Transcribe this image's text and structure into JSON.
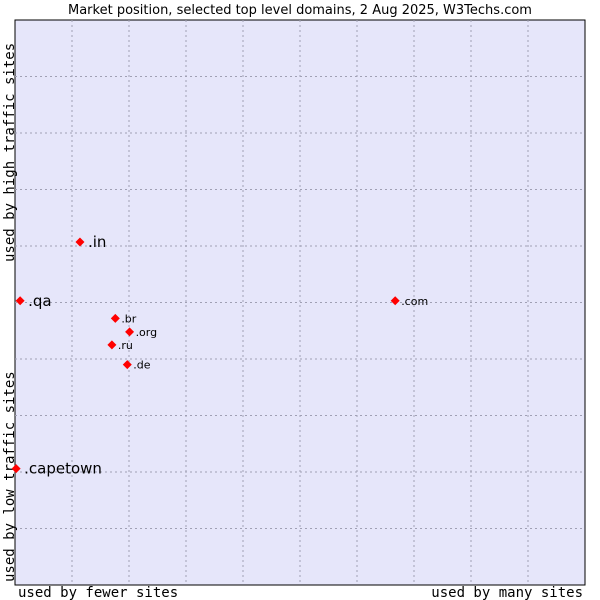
{
  "chart_data": {
    "type": "scatter",
    "title": "Market position, selected top level domains, 2 Aug 2025, W3Techs.com",
    "xlabel_left": "used by fewer sites",
    "xlabel_right": "used by many sites",
    "ylabel_bottom": "used by low traffic sites",
    "ylabel_top": "used by high traffic sites",
    "xlim": [
      0,
      100
    ],
    "ylim": [
      0,
      100
    ],
    "grid": true,
    "point_color": "#ff0000",
    "plot_background": "#e6e6fa",
    "grid_color": "#a0a0b4",
    "points": [
      {
        "label": ".in",
        "x": 11.4,
        "y": 60.7,
        "emphasis": "large"
      },
      {
        "label": ".qa",
        "x": 0.9,
        "y": 50.3,
        "emphasis": "large"
      },
      {
        "label": ".capetown",
        "x": 0.2,
        "y": 20.6,
        "emphasis": "large"
      },
      {
        "label": ".com",
        "x": 66.7,
        "y": 50.3,
        "emphasis": "small"
      },
      {
        "label": ".br",
        "x": 17.6,
        "y": 47.2,
        "emphasis": "small"
      },
      {
        "label": ".org",
        "x": 20.1,
        "y": 44.8,
        "emphasis": "small"
      },
      {
        "label": ".ru",
        "x": 17.0,
        "y": 42.5,
        "emphasis": "small"
      },
      {
        "label": ".de",
        "x": 19.7,
        "y": 39.0,
        "emphasis": "small"
      }
    ]
  }
}
